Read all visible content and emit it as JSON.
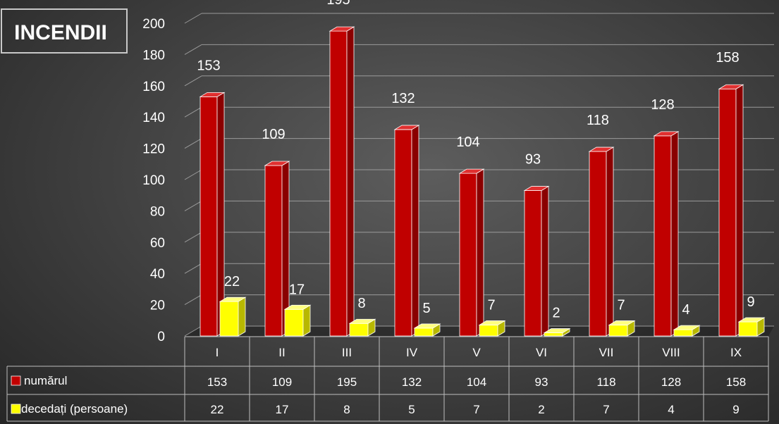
{
  "chart_data": {
    "type": "bar",
    "title": "INCENDII",
    "categories": [
      "I",
      "II",
      "III",
      "IV",
      "V",
      "VI",
      "VII",
      "VIII",
      "IX"
    ],
    "series": [
      {
        "name": "numărul",
        "values": [
          153,
          109,
          195,
          132,
          104,
          93,
          118,
          128,
          158
        ],
        "color": "#c00000"
      },
      {
        "name": "decedați (persoane)",
        "values": [
          22,
          17,
          8,
          5,
          7,
          2,
          7,
          4,
          9
        ],
        "color": "#ffff00"
      }
    ],
    "ylim": [
      0,
      200
    ],
    "yticks": [
      0,
      20,
      40,
      60,
      80,
      100,
      120,
      140,
      160,
      180,
      200
    ],
    "grid": true,
    "legend": "data-table-left",
    "data_table": true
  }
}
